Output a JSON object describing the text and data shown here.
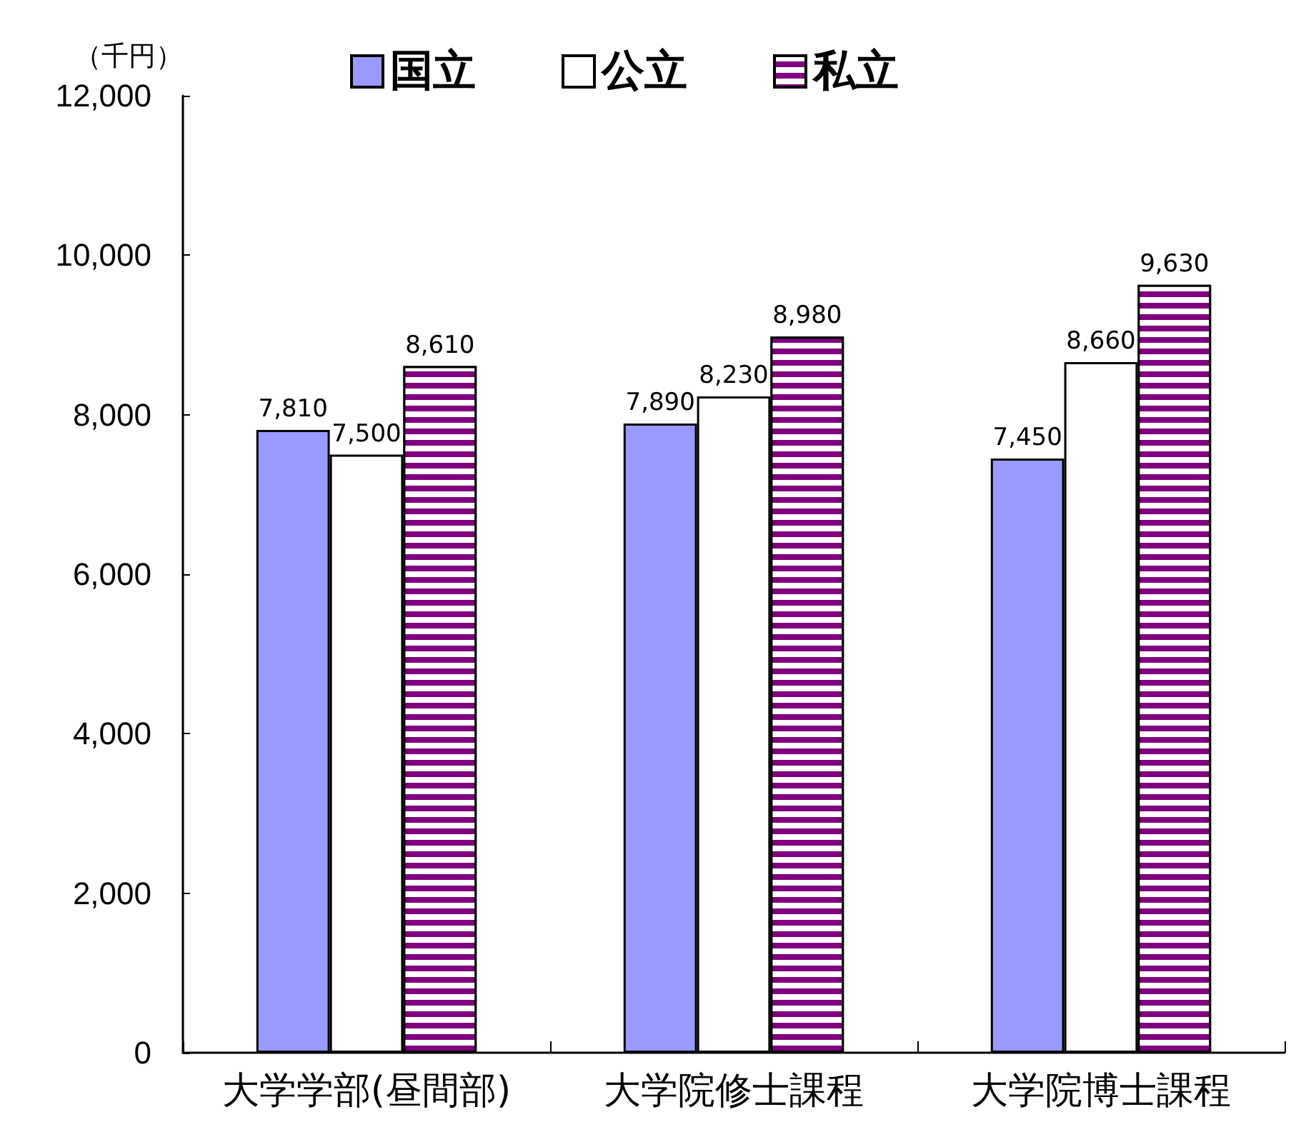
{
  "chart_data": {
    "type": "bar",
    "ylabel": "（千円）",
    "categories": [
      "大学学部(昼間部)",
      "大学院修士課程",
      "大学院博士課程"
    ],
    "series": [
      {
        "name": "国立",
        "color": "#9999ff",
        "values": [
          7810,
          7890,
          7450
        ],
        "value_labels": [
          "7,810",
          "7,890",
          "7,450"
        ]
      },
      {
        "name": "公立",
        "color": "#ffffff",
        "values": [
          7500,
          8230,
          8660
        ],
        "value_labels": [
          "7,500",
          "8,230",
          "8,660"
        ]
      },
      {
        "name": "私立",
        "color": "#800080",
        "values": [
          8610,
          8980,
          9630
        ],
        "value_labels": [
          "8,610",
          "8,980",
          "9,630"
        ]
      }
    ],
    "ylim": [
      0,
      12000
    ],
    "yticks": [
      0,
      {
        "value": 2000,
        "label": "2,000"
      },
      {
        "value": 4000,
        "label": "4,000"
      },
      {
        "value": 6000,
        "label": "6,000"
      },
      {
        "value": 8000,
        "label": "8,000"
      },
      {
        "value": 10000,
        "label": "10,000"
      },
      {
        "value": 12000,
        "label": "12,000"
      }
    ],
    "grid": false,
    "legend": "top"
  }
}
